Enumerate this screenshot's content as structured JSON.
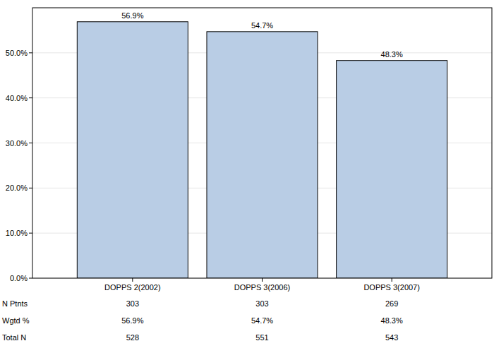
{
  "chart_data": {
    "type": "bar",
    "categories": [
      "DOPPS 2(2002)",
      "DOPPS 3(2006)",
      "DOPPS 3(2007)"
    ],
    "values": [
      56.9,
      54.7,
      48.3
    ],
    "value_labels": [
      "56.9%",
      "54.7%",
      "48.3%"
    ],
    "data_labels": true,
    "color": "#b9cde5",
    "ylim": [
      0,
      60
    ],
    "yticks": [
      {
        "value": 0,
        "label": "0.0%"
      },
      {
        "value": 10,
        "label": "10.0%"
      },
      {
        "value": 20,
        "label": "20.0%"
      },
      {
        "value": 30,
        "label": "30.0%"
      },
      {
        "value": 40,
        "label": "40.0%"
      },
      {
        "value": 50,
        "label": "50.0%"
      }
    ],
    "grid": true
  },
  "table": {
    "rows": [
      {
        "label": "N Ptnts",
        "values": [
          "303",
          "303",
          "269"
        ]
      },
      {
        "label": "Wgtd %",
        "values": [
          "56.9%",
          "54.7%",
          "48.3%"
        ]
      },
      {
        "label": "Total N",
        "values": [
          "528",
          "551",
          "543"
        ]
      }
    ]
  }
}
